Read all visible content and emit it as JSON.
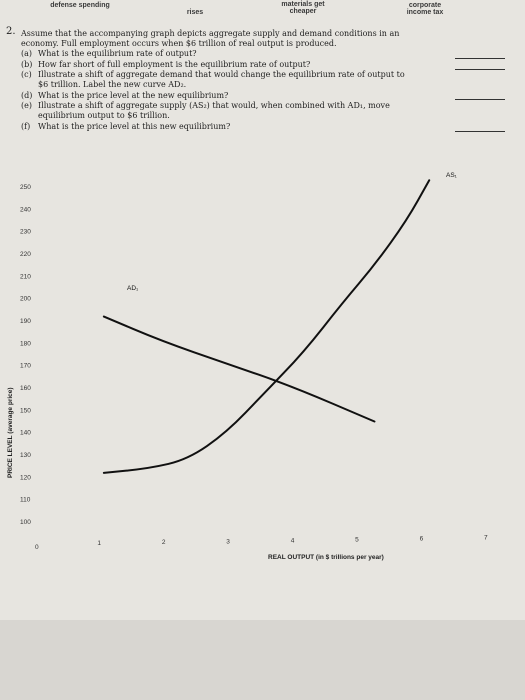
{
  "header": {
    "items": [
      "defense spending",
      "rises",
      "materials get\ncheaper",
      "corporate\nincome tax"
    ]
  },
  "question": {
    "number": "2.",
    "intro_lines": [
      "Assume that the accompanying graph depicts aggregate supply and demand conditions in an",
      "economy. Full employment occurs when $6 trillion of real output is produced."
    ],
    "parts": [
      {
        "label": "(a)",
        "lines": [
          "What is the equilibrium rate of output?"
        ]
      },
      {
        "label": "(b)",
        "lines": [
          "How far short of full employment is the equilibrium rate of output?"
        ]
      },
      {
        "label": "(c)",
        "lines": [
          "Illustrate a shift of aggregate demand that would change the equilibrium rate of output to",
          "$6 trillion. Label the new curve AD₂."
        ]
      },
      {
        "label": "(d)",
        "lines": [
          "What is the price level at the new equilibrium?"
        ]
      },
      {
        "label": "(e)",
        "lines": [
          "Illustrate a shift of aggregate supply (AS₂) that would, when combined with AD₁, move",
          "equilibrium output to $6 trillion."
        ]
      },
      {
        "label": "(f)",
        "lines": [
          "What is the price level at this new equilibrium?"
        ]
      }
    ]
  },
  "chart_data": {
    "type": "line",
    "ylabel": "PRICE LEVEL (average price)",
    "xlabel": "REAL OUTPUT (in $ trillions per year)",
    "y_ticks": [
      250,
      240,
      230,
      220,
      210,
      200,
      190,
      180,
      170,
      160,
      150,
      140,
      130,
      120,
      110,
      100
    ],
    "x_ticks": [
      0,
      1,
      2,
      3,
      4,
      5,
      6,
      7
    ],
    "xlim": [
      0,
      7
    ],
    "ylim": [
      95,
      258
    ],
    "series": [
      {
        "name": "AD₁",
        "x": [
          1.1,
          2,
          3,
          4,
          5.3
        ],
        "y": [
          192,
          181,
          171,
          161,
          145
        ]
      },
      {
        "name": "AS₁",
        "x": [
          1.1,
          1.8,
          2.4,
          3,
          3.6,
          4.2,
          4.8,
          5.3,
          5.8,
          6.15
        ],
        "y": [
          122,
          124,
          128,
          140,
          158,
          176,
          198,
          215,
          235,
          253
        ]
      }
    ],
    "grid": false
  },
  "colors": {
    "paper": "#e7e5e0",
    "ink": "#1e1e1e",
    "curve": "#111111",
    "background": "#2e2a28"
  }
}
